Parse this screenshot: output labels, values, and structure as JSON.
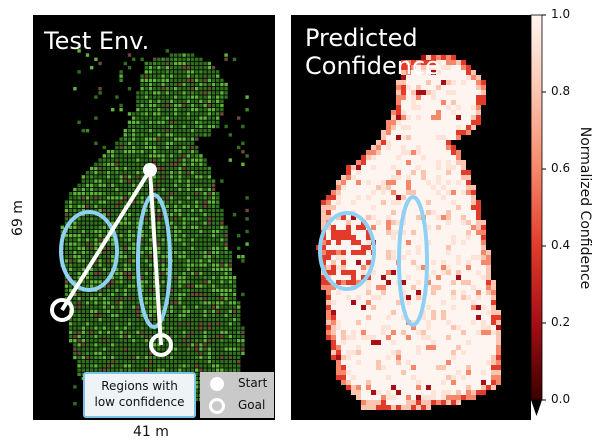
{
  "left_panel": {
    "title": "Test Env.",
    "x_size_label": "41 m",
    "y_size_label": "69 m"
  },
  "right_panel": {
    "title": "Predicted\nConfidence"
  },
  "legend": {
    "regions_label": "Regions with\nlow confidence",
    "start_label": "Start",
    "goal_label": "Goal"
  },
  "colorbar": {
    "label": "Normalized Confidence",
    "ticks": [
      "1.0",
      "0.8",
      "0.6",
      "0.4",
      "0.2",
      "0.0"
    ],
    "min": 0.0,
    "max": 1.0
  },
  "colors": {
    "background": "#000000",
    "vegetation_dark": "#2f6f1e",
    "vegetation_light": "#5fb43a",
    "dirt": "#6b4a38",
    "low_confidence_ellipse": "#8fd0f5",
    "path": "#ffffff",
    "confidence_high": "#fff3ef",
    "confidence_low": "#3a0000"
  }
}
